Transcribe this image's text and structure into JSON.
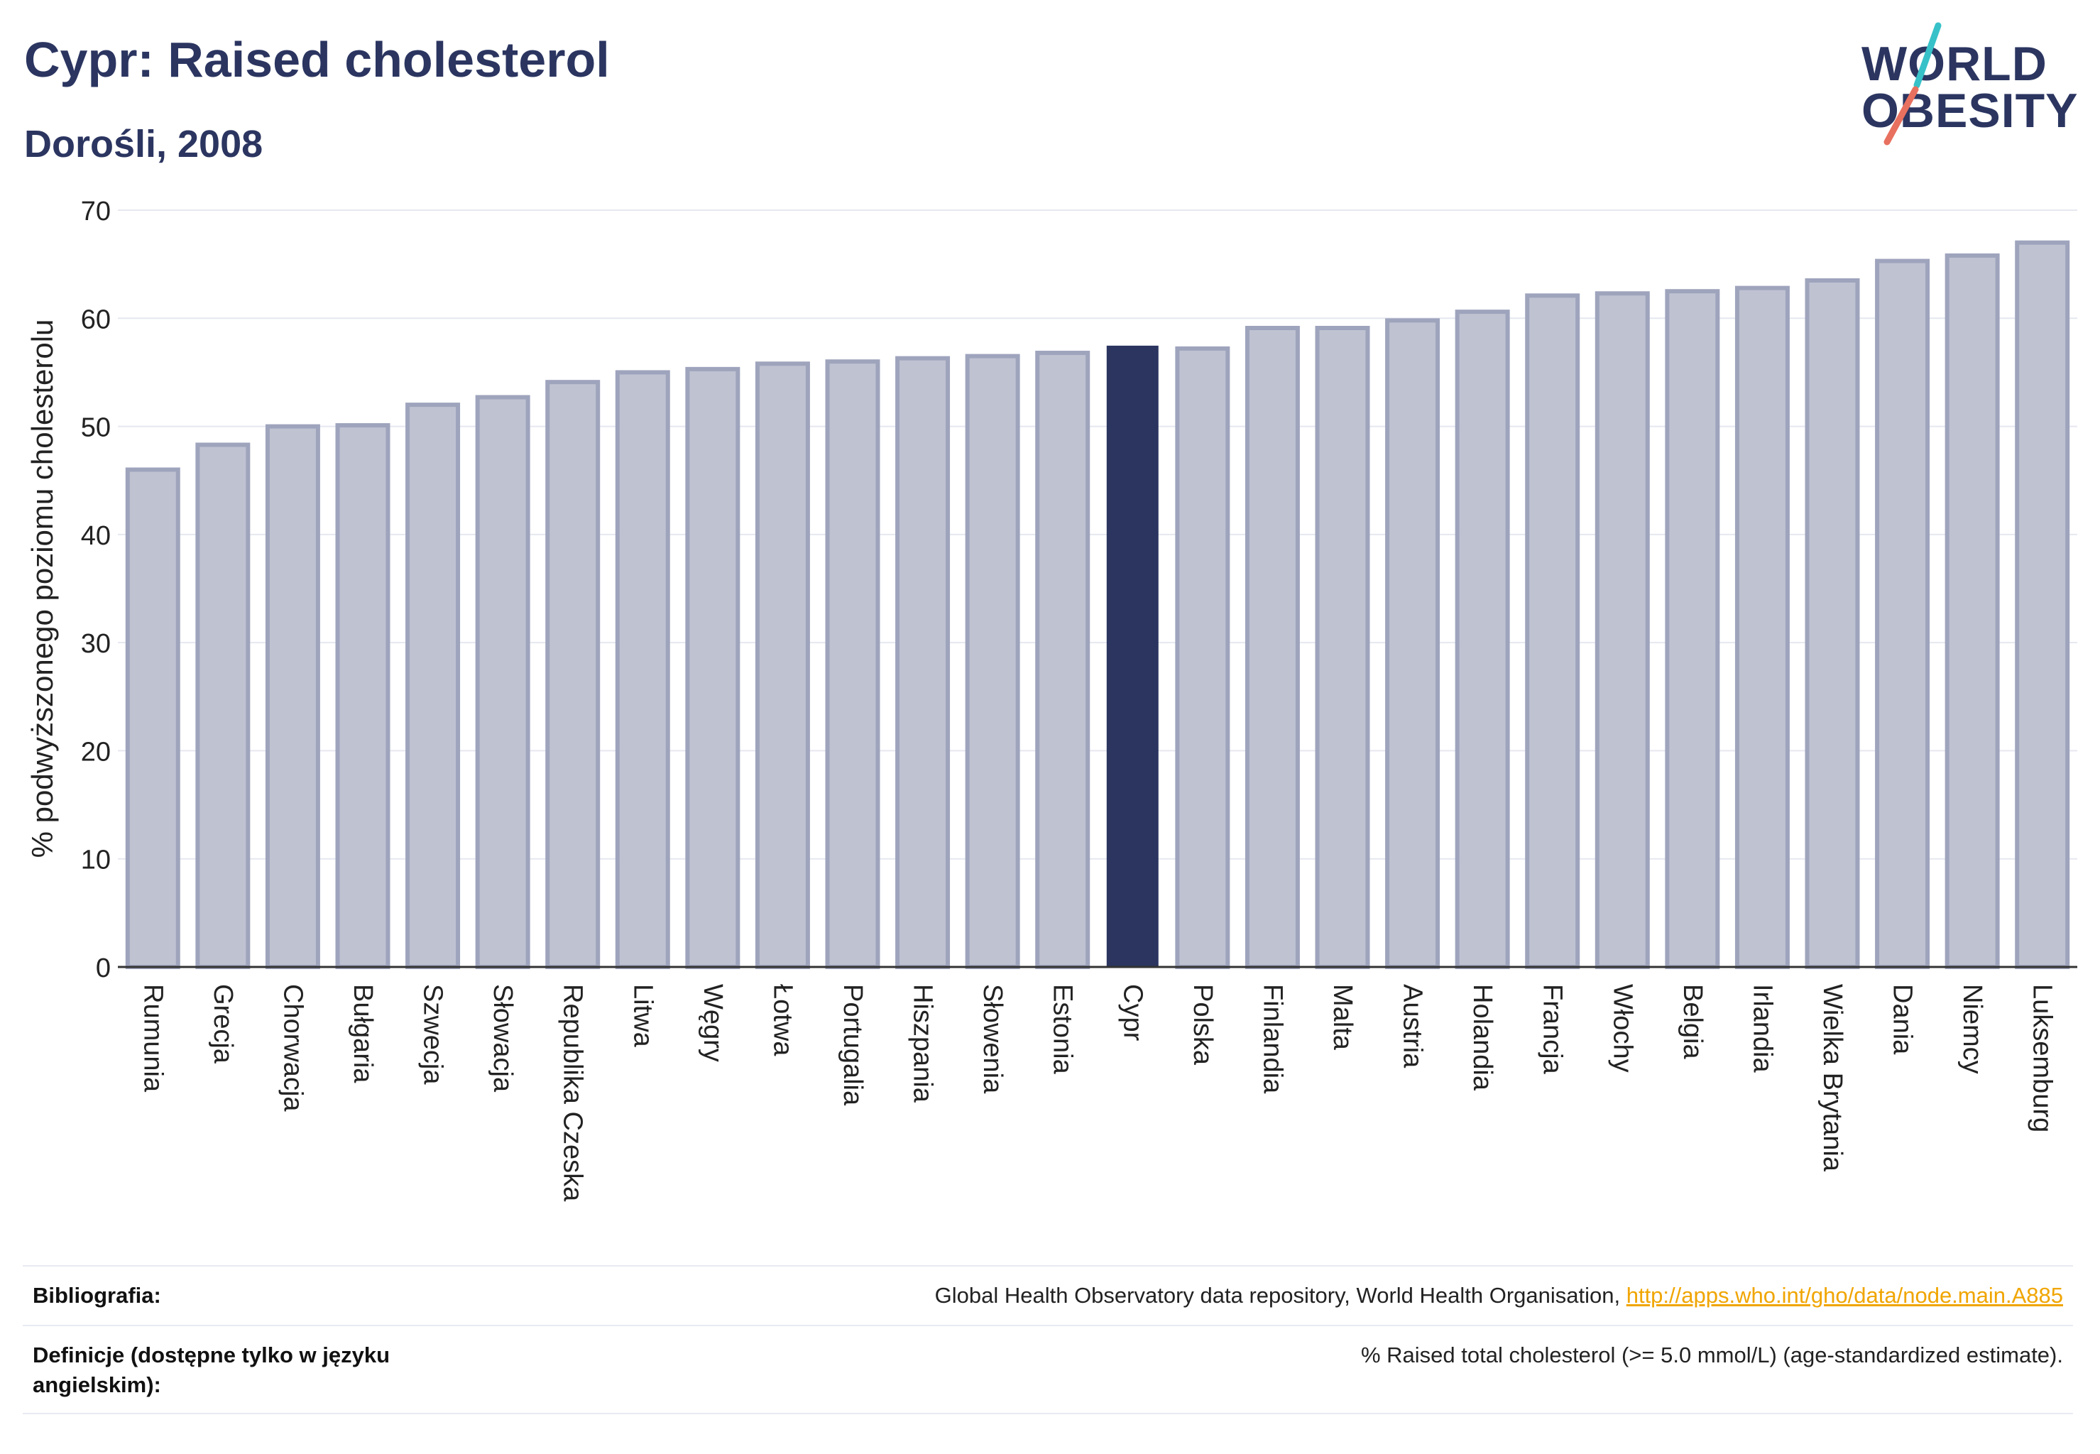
{
  "header": {
    "title": "Cypr: Raised cholesterol",
    "subtitle": "Dorośli, 2008"
  },
  "logo": {
    "line1": "WORLD",
    "line2": "OBESITY",
    "slash_colors": [
      "#37c1c8",
      "#e8705f"
    ]
  },
  "colors": {
    "bar": "#bfc2d1",
    "bar_border": "#9fa4bd",
    "highlight": "#2b3560",
    "grid": "#e6e8f0",
    "axis": "#333333"
  },
  "chart_data": {
    "type": "bar",
    "title": "Cypr: Raised cholesterol",
    "subtitle": "Dorośli, 2008",
    "ylabel": "% podwyższonego poziomu cholesterolu",
    "xlabel": "",
    "ylim": [
      0,
      70
    ],
    "yticks": [
      0,
      10,
      20,
      30,
      40,
      50,
      60,
      70
    ],
    "grid": true,
    "highlight": "Cypr",
    "categories": [
      "Rumunia",
      "Grecja",
      "Chorwacja",
      "Bułgaria",
      "Szwecja",
      "Słowacja",
      "Republika Czeska",
      "Litwa",
      "Węgry",
      "Łotwa",
      "Portugalia",
      "Hiszpania",
      "Słowenia",
      "Estonia",
      "Cypr",
      "Polska",
      "Finlandia",
      "Malta",
      "Austria",
      "Holandia",
      "Francja",
      "Włochy",
      "Belgia",
      "Irlandia",
      "Wielka Brytania",
      "Dania",
      "Niemcy",
      "Luksemburg"
    ],
    "values": [
      46.0,
      48.3,
      50.0,
      50.1,
      52.0,
      52.7,
      54.1,
      55.0,
      55.3,
      55.8,
      56.0,
      56.3,
      56.5,
      56.8,
      57.4,
      57.2,
      59.1,
      59.1,
      59.8,
      60.6,
      62.1,
      62.3,
      62.5,
      62.8,
      63.5,
      65.3,
      65.8,
      67.0
    ]
  },
  "footer": {
    "bibliography_label": "Bibliografia:",
    "bibliography_text": "Global Health Observatory data repository, World Health Organisation, ",
    "bibliography_link": "http://apps.who.int/gho/data/node.main.A885",
    "definition_label": "Definicje (dostępne tylko w języku angielskim):",
    "definition_text": "% Raised total cholesterol (>= 5.0 mmol/L) (age-standardized estimate)."
  }
}
